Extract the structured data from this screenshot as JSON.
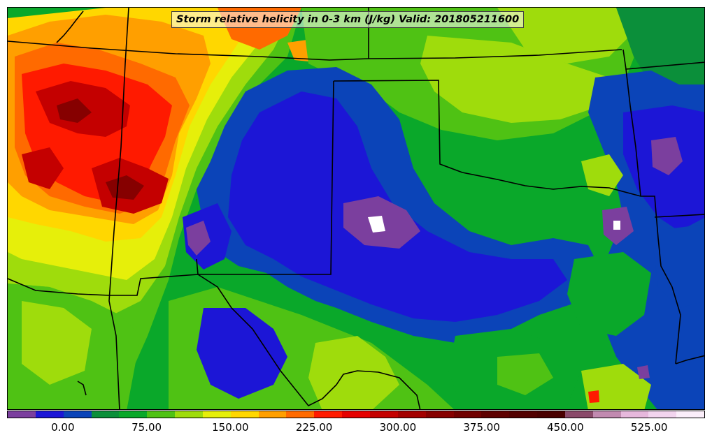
{
  "title": "Storm relative helicity in 0-3 km (J/kg) Valid: 201805211600",
  "colorbar": {
    "colors": [
      "#7b3f9e",
      "#1c16d6",
      "#0b44b8",
      "#0b8f3a",
      "#0aa82a",
      "#4fc214",
      "#9fdc0c",
      "#e6ef0a",
      "#ffd700",
      "#ff9f00",
      "#ff6a00",
      "#ff1a00",
      "#e60000",
      "#c40000",
      "#a30000",
      "#860000",
      "#700000",
      "#5e0000",
      "#520000",
      "#4a0000",
      "#8a4a6a",
      "#c18ab0",
      "#e6b8dc",
      "#f2d4ee",
      "#fbeefa"
    ],
    "tick_labels": [
      "0.00",
      "75.00",
      "150.00",
      "225.00",
      "300.00",
      "375.00",
      "450.00",
      "525.00"
    ],
    "tick_values": [
      0,
      75,
      150,
      225,
      300,
      375,
      450,
      525
    ]
  },
  "map": {
    "background_color": "#0aa82a",
    "boundary_color": "#000000"
  }
}
